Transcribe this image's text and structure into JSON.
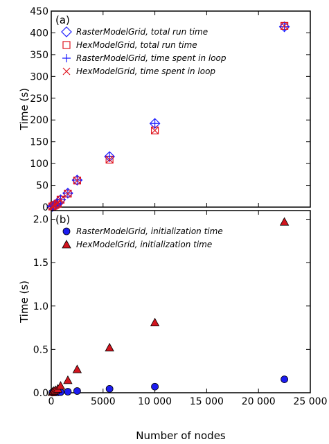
{
  "chart_data": [
    {
      "type": "scatter",
      "panel_label": "(a)",
      "xlabel": "",
      "ylabel": "Time (s)",
      "xlim": [
        0,
        25000
      ],
      "ylim": [
        0,
        450
      ],
      "xticks": [
        "0",
        "5000",
        "10 000",
        "15 000",
        "20 000",
        "25 000"
      ],
      "yticks": [
        "0",
        "50",
        "100",
        "150",
        "200",
        "250",
        "300",
        "350",
        "400",
        "450"
      ],
      "grid": false,
      "legend_position": "top-left",
      "series": [
        {
          "name": "RasterModelGrid, total run time",
          "marker": "diamond-open",
          "color": "#1a1aff",
          "x": [
            100,
            225,
            400,
            625,
            900,
            1600,
            2500,
            5625,
            10000,
            22500
          ],
          "y": [
            1.5,
            3,
            5,
            8,
            17,
            32,
            62,
            116,
            192,
            414
          ]
        },
        {
          "name": "HexModelGrid, total run time",
          "marker": "square-open",
          "color": "#e0141e",
          "x": [
            100,
            225,
            400,
            625,
            900,
            1600,
            2500,
            5625,
            10000,
            22500
          ],
          "y": [
            1.4,
            3,
            5,
            8,
            17,
            31,
            61,
            109,
            176,
            416
          ]
        },
        {
          "name": "RasterModelGrid, time spent in loop",
          "marker": "plus",
          "color": "#1a1aff",
          "x": [
            100,
            225,
            400,
            625,
            900,
            1600,
            2500,
            5625,
            10000,
            22500
          ],
          "y": [
            1.5,
            3,
            5,
            8,
            17,
            32,
            62,
            116,
            192,
            414
          ]
        },
        {
          "name": "HexModelGrid, time spent in loop",
          "marker": "x",
          "color": "#e0141e",
          "x": [
            100,
            225,
            400,
            625,
            900,
            1600,
            2500,
            5625,
            10000,
            22500
          ],
          "y": [
            1.4,
            3,
            5,
            8,
            17,
            31,
            61,
            109,
            176,
            416
          ]
        }
      ]
    },
    {
      "type": "scatter",
      "panel_label": "(b)",
      "xlabel": "Number of nodes",
      "ylabel": "Time (s)",
      "xlim": [
        0,
        25000
      ],
      "ylim": [
        0,
        2.1
      ],
      "xticks": [
        "0",
        "5000",
        "10 000",
        "15 000",
        "20 000",
        "25 000"
      ],
      "yticks": [
        "0.0",
        "0.5",
        "1.0",
        "1.5",
        "2.0"
      ],
      "grid": false,
      "legend_position": "top-left",
      "series": [
        {
          "name": "RasterModelGrid, initialization time",
          "marker": "circle-filled",
          "color": "#1c1cf0",
          "x": [
            100,
            225,
            400,
            625,
            900,
            1600,
            2500,
            5625,
            10000,
            22500
          ],
          "y": [
            0.002,
            0.003,
            0.004,
            0.005,
            0.007,
            0.012,
            0.02,
            0.045,
            0.07,
            0.155
          ]
        },
        {
          "name": "HexModelGrid, initialization time",
          "marker": "triangle-filled",
          "color": "#d2141e",
          "x": [
            100,
            225,
            400,
            625,
            900,
            1600,
            2500,
            5625,
            10000,
            22500
          ],
          "y": [
            0.008,
            0.02,
            0.03,
            0.045,
            0.08,
            0.145,
            0.27,
            0.52,
            0.81,
            1.97
          ]
        }
      ]
    }
  ]
}
